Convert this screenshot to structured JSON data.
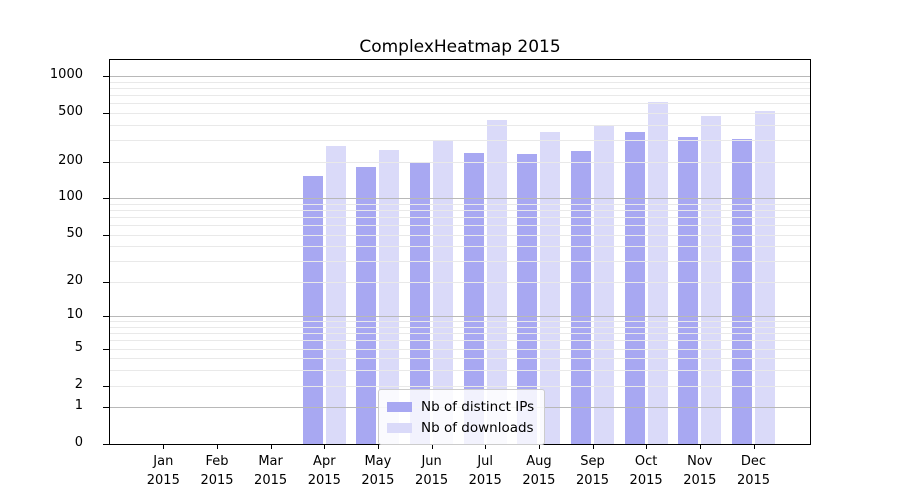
{
  "figure": {
    "title": "ComplexHeatmap 2015"
  },
  "chart_data": {
    "type": "bar",
    "title": "ComplexHeatmap 2015",
    "categories": [
      "Jan 2015",
      "Feb 2015",
      "Mar 2015",
      "Apr 2015",
      "May 2015",
      "Jun 2015",
      "Jul 2015",
      "Aug 2015",
      "Sep 2015",
      "Oct 2015",
      "Nov 2015",
      "Dec 2015"
    ],
    "x_tick_months": [
      "Jan",
      "Feb",
      "Mar",
      "Apr",
      "May",
      "Jun",
      "Jul",
      "Aug",
      "Sep",
      "Oct",
      "Nov",
      "Dec"
    ],
    "x_tick_year": "2015",
    "series": [
      {
        "name": "Nb of distinct IPs",
        "color": "#a8a8f2",
        "values": [
          0,
          0,
          0,
          151,
          182,
          196,
          233,
          231,
          245,
          347,
          318,
          308
        ]
      },
      {
        "name": "Nb of downloads",
        "color": "#dadaf9",
        "values": [
          0,
          0,
          0,
          268,
          247,
          297,
          440,
          346,
          391,
          615,
          476,
          518
        ]
      }
    ],
    "xlabel": "",
    "ylabel": "",
    "yscale": "log1p",
    "ylim": [
      0,
      1350
    ],
    "ytick_values": [
      0,
      1,
      2,
      5,
      10,
      20,
      50,
      100,
      200,
      500,
      1000
    ],
    "major_grid_values": [
      1,
      10,
      100,
      1000
    ],
    "minor_grid_values": [
      2,
      3,
      4,
      5,
      6,
      7,
      8,
      9,
      20,
      30,
      40,
      50,
      60,
      70,
      80,
      90,
      200,
      300,
      400,
      500,
      600,
      700,
      800,
      900
    ],
    "grid": true,
    "legend_position": "lower center",
    "major_grid_color": "#b8b8b8",
    "minor_grid_color": "#e9e9e9"
  }
}
